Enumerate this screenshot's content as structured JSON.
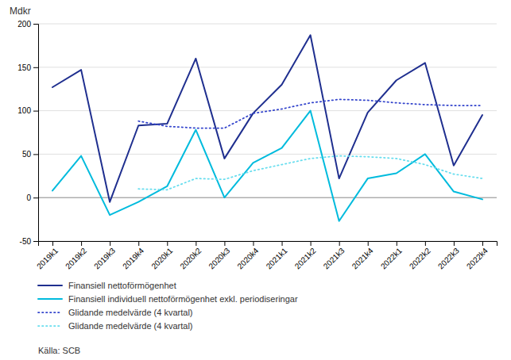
{
  "chart_data": {
    "type": "line",
    "ylabel": "Mdkr",
    "source": "Källa: SCB",
    "categories": [
      "2019k1",
      "2019k2",
      "2019k3",
      "2019k4",
      "2020k1",
      "2020k2",
      "2020k3",
      "2020k4",
      "2021k1",
      "2021k2",
      "2021k3",
      "2021k4",
      "2022k1",
      "2022k2",
      "2022k3",
      "2022k4"
    ],
    "series": [
      {
        "name": "Finansiell nettoförmögenhet",
        "color": "#1F2F8F",
        "line_style": "solid",
        "values": [
          127,
          147,
          -5,
          83,
          85,
          160,
          45,
          97,
          130,
          187,
          22,
          98,
          135,
          155,
          37,
          95
        ]
      },
      {
        "name": "Finansiell individuell nettoförmögenhet exkl. periodiseringar",
        "color": "#00BBDD",
        "line_style": "solid",
        "values": [
          8,
          48,
          -20,
          -5,
          13,
          78,
          0,
          40,
          57,
          100,
          -27,
          22,
          28,
          50,
          7,
          -2
        ]
      },
      {
        "name": "Glidande medelvärde (4 kvartal)",
        "color": "#3344CC",
        "line_style": "dotted",
        "values": [
          null,
          null,
          null,
          88,
          82,
          80,
          80,
          97,
          102,
          109,
          113,
          112,
          109,
          107,
          106,
          106
        ]
      },
      {
        "name": "Glidande medelvärde (4 kvartal)",
        "color": "#66DDEE",
        "line_style": "dotted",
        "values": [
          null,
          null,
          null,
          10,
          9,
          22,
          21,
          31,
          38,
          45,
          48,
          47,
          45,
          38,
          27,
          22
        ]
      }
    ],
    "ylim": [
      -50,
      200
    ],
    "yticks": [
      -50,
      0,
      50,
      100,
      150,
      200
    ],
    "grid": true
  }
}
